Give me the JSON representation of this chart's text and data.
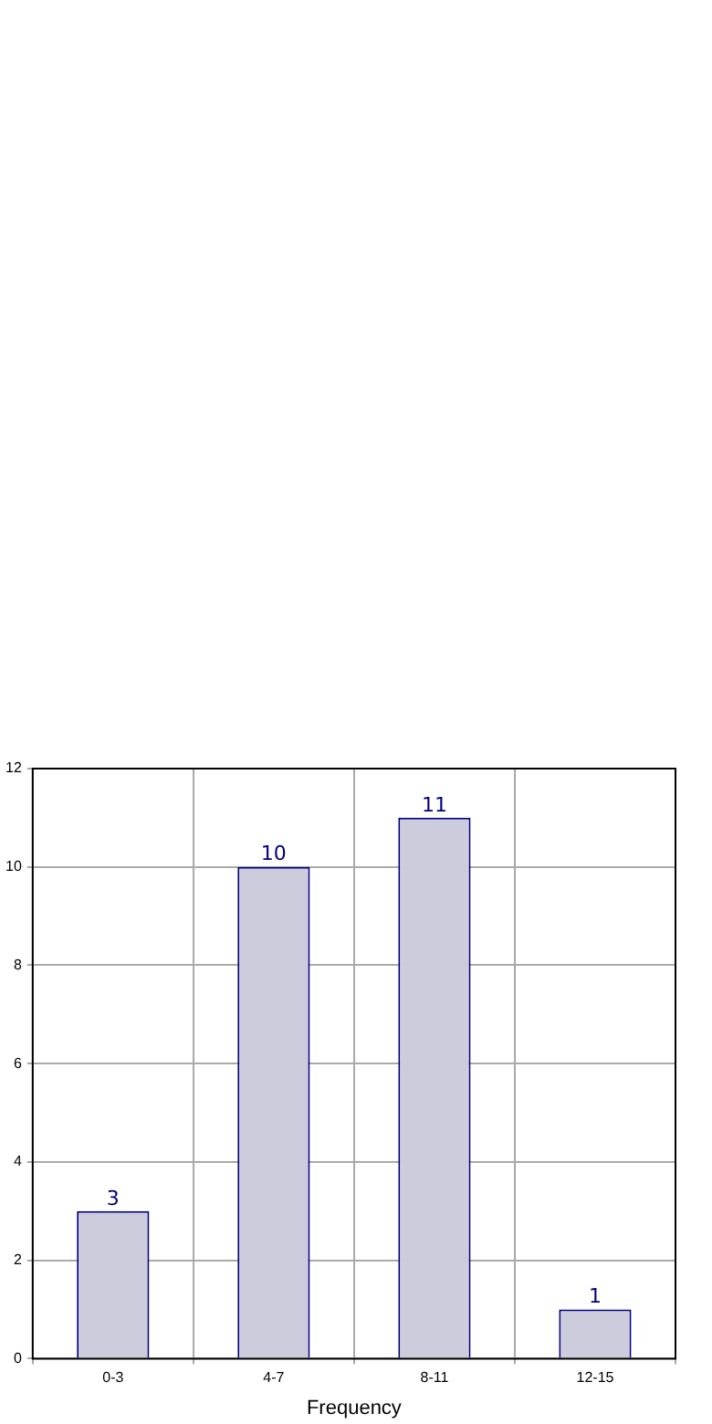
{
  "chart_data": {
    "type": "bar",
    "xlabel": "Frequency",
    "categories": [
      "0-3",
      "4-7",
      "8-11",
      "12-15"
    ],
    "values": [
      3,
      10,
      11,
      1
    ],
    "color": "#ccccdd",
    "ylim": [
      0,
      12
    ],
    "yticks": [
      0,
      2,
      4,
      6,
      8,
      10,
      12
    ],
    "grid": true,
    "data_labels": true,
    "legend": false
  }
}
